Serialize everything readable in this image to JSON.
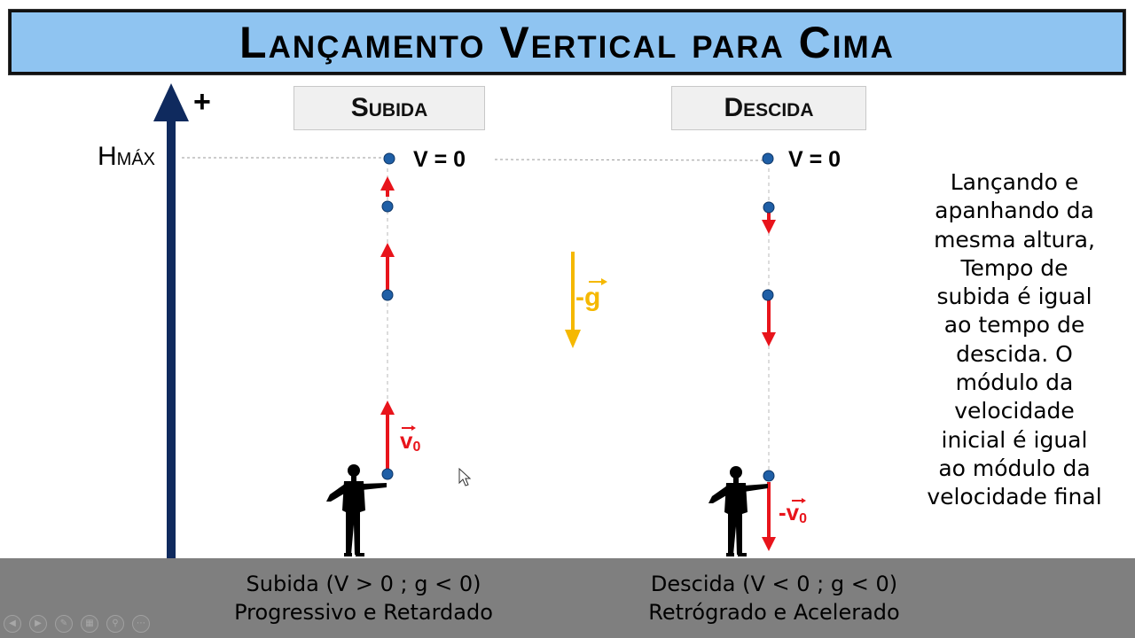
{
  "title": "Lançamento Vertical para Cima",
  "phases": {
    "up": "Subida",
    "down": "Descida"
  },
  "axis": {
    "plus": "+",
    "hmax_h": "H",
    "hmax_sub": "MÁX"
  },
  "labels": {
    "v_zero_up": "V = 0",
    "v_zero_down": "V = 0",
    "g_label": "-g",
    "v0_label": "v",
    "v0_sub": "0",
    "neg_v0_label": "-v",
    "neg_v0_sub": "0"
  },
  "explanation_lines": [
    "Lançando e",
    "apanhando da",
    "mesma altura,",
    "Tempo de",
    "subida é igual",
    "ao tempo de",
    "descida. O",
    "módulo da",
    "velocidade",
    "inicial é igual",
    "ao módulo da",
    "velocidade final"
  ],
  "captions": {
    "up": [
      "Subida (V > 0 ; g < 0)",
      "Progressivo e Retardado"
    ],
    "down": [
      "Descida (V < 0 ; g < 0)",
      "Retrógrado e Acelerado"
    ]
  },
  "colors": {
    "title_bg": "#8fc4f1",
    "axis": "#0f2a5e",
    "arrow": "#e8141b",
    "gravity": "#f5b800",
    "ball": "#1f5fa6",
    "ground": "#7f7f7f"
  },
  "controls": [
    "prev-icon",
    "next-icon",
    "pen-icon",
    "slides-icon",
    "zoom-icon",
    "more-icon"
  ]
}
